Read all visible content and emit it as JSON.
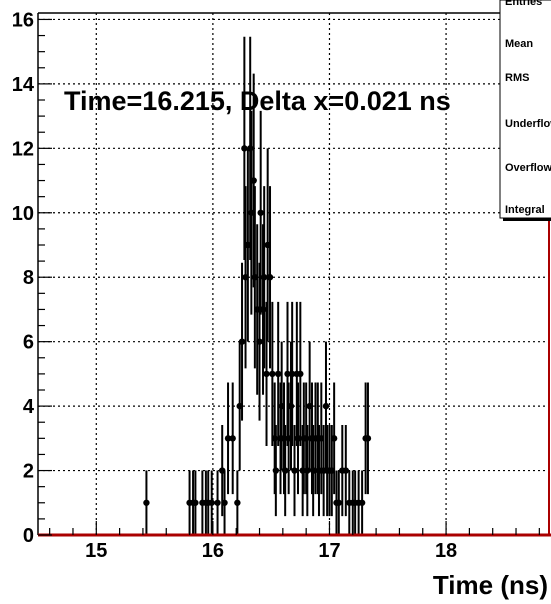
{
  "chart_data": {
    "type": "scatter",
    "title": "",
    "xlabel": "Time (ns)",
    "ylabel": "",
    "annotation": "Time=16.215, Delta x=0.021 ns",
    "xlim": [
      14.5,
      18.9
    ],
    "ylim": [
      0,
      16.2
    ],
    "x_ticks": [
      15,
      16,
      17,
      18
    ],
    "y_ticks": [
      0,
      2,
      4,
      6,
      8,
      10,
      12,
      14,
      16
    ],
    "grid": true,
    "error_bars": "sqrt(N)",
    "stats_box": {
      "position": "top-right",
      "labels": [
        "Entries",
        "Mean",
        "RMS",
        "Underflow",
        "Overflow",
        "Integral"
      ]
    },
    "series": [
      {
        "points": [
          [
            15.43,
            1
          ],
          [
            15.8,
            1
          ],
          [
            15.83,
            1
          ],
          [
            15.85,
            1
          ],
          [
            15.91,
            1
          ],
          [
            15.94,
            1
          ],
          [
            15.96,
            1
          ],
          [
            15.99,
            1
          ],
          [
            16.04,
            1
          ],
          [
            16.08,
            2
          ],
          [
            16.1,
            1
          ],
          [
            16.13,
            3
          ],
          [
            16.17,
            3
          ],
          [
            16.21,
            1
          ],
          [
            16.23,
            4
          ],
          [
            16.25,
            6
          ],
          [
            16.27,
            12
          ],
          [
            16.28,
            8
          ],
          [
            16.3,
            9
          ],
          [
            16.32,
            12
          ],
          [
            16.33,
            10
          ],
          [
            16.35,
            11
          ],
          [
            16.36,
            8
          ],
          [
            16.38,
            7
          ],
          [
            16.4,
            6
          ],
          [
            16.41,
            10
          ],
          [
            16.43,
            7
          ],
          [
            16.44,
            8
          ],
          [
            16.46,
            5
          ],
          [
            16.47,
            9
          ],
          [
            16.49,
            8
          ],
          [
            16.51,
            5
          ],
          [
            16.53,
            3
          ],
          [
            16.54,
            2
          ],
          [
            16.56,
            5
          ],
          [
            16.58,
            3
          ],
          [
            16.59,
            4
          ],
          [
            16.61,
            3
          ],
          [
            16.62,
            2
          ],
          [
            16.64,
            5
          ],
          [
            16.65,
            3
          ],
          [
            16.67,
            4
          ],
          [
            16.68,
            5
          ],
          [
            16.7,
            2
          ],
          [
            16.72,
            5
          ],
          [
            16.73,
            3
          ],
          [
            16.75,
            5
          ],
          [
            16.77,
            2
          ],
          [
            16.78,
            3
          ],
          [
            16.8,
            3
          ],
          [
            16.81,
            2
          ],
          [
            16.83,
            4
          ],
          [
            16.85,
            3
          ],
          [
            16.86,
            2
          ],
          [
            16.88,
            3
          ],
          [
            16.9,
            3
          ],
          [
            16.91,
            2
          ],
          [
            16.93,
            3
          ],
          [
            16.95,
            2
          ],
          [
            16.97,
            4
          ],
          [
            16.98,
            2
          ],
          [
            17.0,
            2
          ],
          [
            17.02,
            2
          ],
          [
            17.04,
            3
          ],
          [
            17.06,
            1
          ],
          [
            17.08,
            1
          ],
          [
            17.11,
            2
          ],
          [
            17.14,
            2
          ],
          [
            17.17,
            1
          ],
          [
            17.2,
            1
          ],
          [
            17.22,
            1
          ],
          [
            17.25,
            1
          ],
          [
            17.28,
            1
          ],
          [
            17.31,
            3
          ],
          [
            17.33,
            3
          ]
        ]
      }
    ]
  }
}
